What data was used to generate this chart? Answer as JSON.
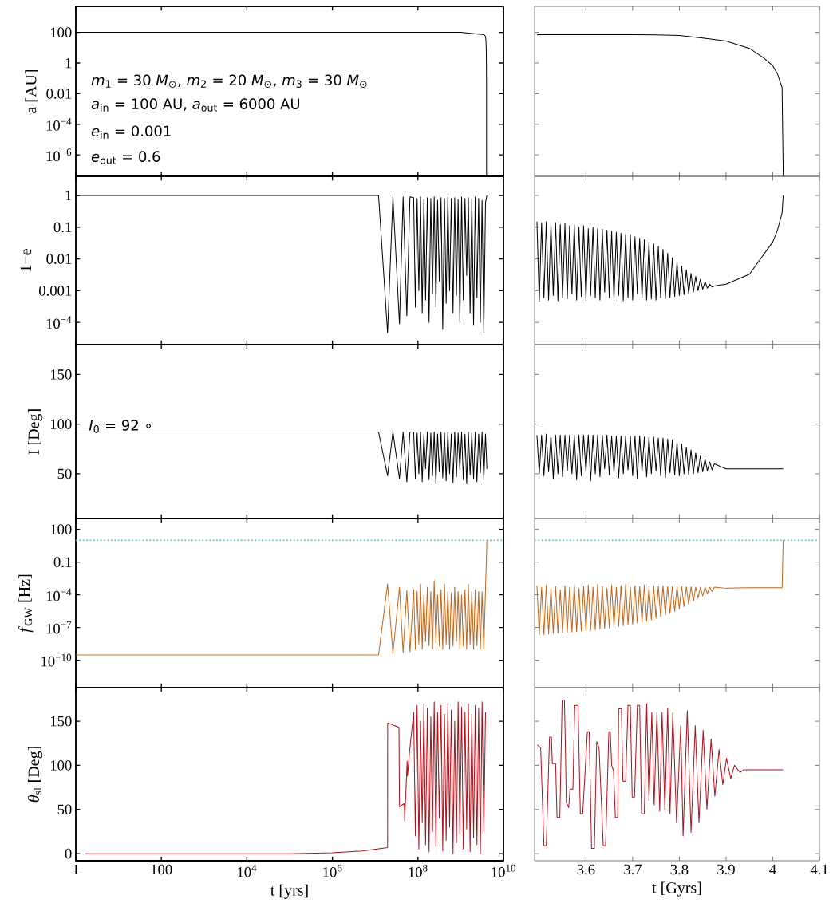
{
  "chart_data": [
    {
      "type": "line",
      "ylabel": "a [AU]",
      "log": "xy",
      "tick_labels": "y",
      "xlim": [
        1,
        10000000000
      ],
      "ylim": [
        4e-08,
        5000
      ],
      "xticks": [
        1,
        100,
        10000,
        1000000,
        100000000,
        10000000000
      ],
      "yticks": [
        100,
        1,
        0.01,
        {
          "value": 0.0001,
          "label": "10$^{−4}$"
        },
        {
          "value": 1e-06,
          "label": "10$^{−6}$"
        }
      ],
      "annotations": [
        "*m*$_{1}$ = 30 *M*$_{⊙}$, *m*$_{2}$ = 20 *M*$_{⊙}$, *m*$_{3}$ = 30 *M*$_{⊙}$",
        "*a*$_{in}$ = 100 AU, *a*$_{out}$ = 6000 AU",
        "*e*$_{in}$ = 0.001",
        "*e*$_{out}$ = 0.6"
      ],
      "series": [
        {
          "color": "#000000",
          "x": [
            1,
            1000000000.0,
            3500000000.0,
            3800000000.0,
            3900000000.0,
            3950000000.0,
            4000000000.0,
            4020000000.0,
            4022500000.0
          ],
          "values": [
            100,
            100,
            70,
            55,
            27,
            9,
            0.66,
            0.025,
            4e-08
          ]
        }
      ]
    },
    {
      "type": "line",
      "log": "y",
      "tick_labels": false,
      "xlim": [
        3.49,
        4.1
      ],
      "ylim": [
        4e-08,
        5000
      ],
      "xticks": [
        3.6,
        3.7,
        3.8,
        3.9,
        4,
        4.1
      ],
      "yticks": [
        100,
        1,
        0.01,
        0.0001,
        1e-06
      ],
      "series": [
        {
          "color": "#000000",
          "x": [
            3.495,
            3.7,
            3.75,
            3.8,
            3.85,
            3.9,
            3.95,
            3.98,
            4.0,
            4.01,
            4.02,
            4.0225
          ],
          "values": [
            70,
            70,
            68,
            62,
            43,
            27,
            9,
            2.2,
            0.66,
            0.2,
            0.025,
            4e-08
          ]
        }
      ]
    },
    {
      "type": "line",
      "ylabel": "1−e",
      "log": "xy",
      "tick_labels": "y",
      "xlim": [
        1,
        10000000000
      ],
      "ylim": [
        2e-05,
        4
      ],
      "xticks": [
        1,
        100,
        10000,
        1000000,
        100000000,
        10000000000
      ],
      "yticks": [
        1,
        0.1,
        0.01,
        0.001,
        {
          "value": 0.0001,
          "label": "10$^{−4}$"
        }
      ],
      "x": [
        1,
        1000000.0,
        12000000.0,
        19500000.0,
        26000000.0,
        37000000.0,
        45000000.0,
        55000000.0,
        65000000.0,
        79400000.0,
        87100000.0,
        95500000.0,
        105000000.0,
        115000000.0,
        126000000.0,
        138000000.0,
        151000000.0,
        166000000.0,
        182000000.0,
        200000000.0,
        219000000.0,
        240000000.0,
        263000000.0,
        288000000.0,
        316000000.0,
        347000000.0,
        380000000.0,
        417000000.0,
        457000000.0,
        501000000.0,
        550000000.0,
        603000000.0,
        661000000.0,
        724000000.0,
        794000000.0,
        871000000.0,
        955000000.0,
        1050000000.0,
        1150000000.0,
        1260000000.0,
        1380000000.0,
        1510000000.0,
        1660000000.0,
        1820000000.0,
        2000000000.0,
        2190000000.0,
        2400000000.0,
        2630000000.0,
        2880000000.0,
        3160000000.0,
        3470000000.0,
        3800000000.0,
        4100000000.0
      ],
      "series": [
        {
          "color": "#000000",
          "values": [
            1,
            1,
            1,
            4.7e-05,
            0.9,
            9e-05,
            0.9,
            0.00016,
            0.9,
            0.85,
            0.0003,
            0.8,
            0.001,
            0.9,
            0.0002,
            0.75,
            0.0005,
            0.85,
            0.0001,
            0.8,
            0.0008,
            0.9,
            0.0003,
            0.7,
            0.002,
            0.85,
            6e-05,
            0.8,
            0.0004,
            0.9,
            0.001,
            0.8,
            0.0002,
            0.85,
            0.0007,
            0.75,
            0.0001,
            0.9,
            0.0005,
            0.8,
            0.003,
            0.85,
            0.0002,
            0.8,
            8e-05,
            0.9,
            0.0006,
            0.8,
            0.0001,
            0.7,
            5e-05,
            0.6,
            1
          ]
        }
      ]
    },
    {
      "type": "line",
      "log": "y",
      "tick_labels": false,
      "xlim": [
        3.49,
        4.1
      ],
      "ylim": [
        2e-05,
        4
      ],
      "xticks": [
        3.6,
        3.7,
        3.8,
        3.9,
        4,
        4.1
      ],
      "yticks": [
        1,
        0.1,
        0.01,
        0.001,
        0.0001
      ],
      "x": [
        3.495,
        3.5,
        3.505,
        3.51,
        3.515,
        3.52,
        3.525,
        3.53,
        3.535,
        3.54,
        3.545,
        3.55,
        3.555,
        3.56,
        3.565,
        3.57,
        3.575,
        3.58,
        3.585,
        3.59,
        3.595,
        3.6,
        3.605,
        3.61,
        3.615,
        3.62,
        3.625,
        3.63,
        3.635,
        3.64,
        3.645,
        3.65,
        3.655,
        3.66,
        3.665,
        3.67,
        3.675,
        3.68,
        3.685,
        3.69,
        3.695,
        3.7,
        3.705,
        3.71,
        3.715,
        3.72,
        3.725,
        3.73,
        3.735,
        3.74,
        3.745,
        3.75,
        3.755,
        3.76,
        3.765,
        3.77,
        3.775,
        3.78,
        3.785,
        3.79,
        3.795,
        3.8,
        3.805,
        3.81,
        3.815,
        3.82,
        3.825,
        3.83,
        3.835,
        3.84,
        3.845,
        3.85,
        3.855,
        3.86,
        3.865,
        3.87,
        3.875,
        3.9,
        3.95,
        4.0,
        4.01,
        4.02,
        4.0225
      ],
      "series": [
        {
          "color": "#000000",
          "values": [
            0.15,
            0.00045,
            0.14,
            0.0006,
            0.15,
            0.0005,
            0.13,
            0.0007,
            0.14,
            0.00048,
            0.12,
            0.0006,
            0.13,
            0.00055,
            0.11,
            0.0008,
            0.12,
            0.0005,
            0.1,
            0.00065,
            0.11,
            0.0005,
            0.09,
            0.0007,
            0.1,
            0.0006,
            0.09,
            0.0005,
            0.085,
            0.0009,
            0.08,
            0.0006,
            0.075,
            0.0005,
            0.07,
            0.0007,
            0.065,
            0.00048,
            0.06,
            0.0006,
            0.06,
            0.0005,
            0.05,
            0.0008,
            0.045,
            0.0006,
            0.04,
            0.0005,
            0.035,
            0.00055,
            0.03,
            0.0005,
            0.025,
            0.0006,
            0.02,
            0.00055,
            0.015,
            0.0006,
            0.011,
            0.00065,
            0.008,
            0.0007,
            0.006,
            0.00075,
            0.0045,
            0.0008,
            0.0035,
            0.0009,
            0.0028,
            0.001,
            0.0023,
            0.0011,
            0.0019,
            0.0012,
            0.0016,
            0.0013,
            0.0014,
            0.0016,
            0.0033,
            0.034,
            0.08,
            0.28,
            1
          ]
        }
      ]
    },
    {
      "type": "line",
      "ylabel": "I [Deg]",
      "log": "x",
      "tick_labels": "y",
      "xlim": [
        1,
        10000000000
      ],
      "ylim": [
        5,
        180
      ],
      "xticks": [
        1,
        100,
        10000,
        1000000,
        100000000,
        10000000000
      ],
      "yticks": [
        50,
        100,
        150
      ],
      "annotations": [
        "*I*$_{0}$ = 92 ∘"
      ],
      "x": [
        1,
        1000000.0,
        12000000.0,
        19500000.0,
        26000000.0,
        37000000.0,
        45000000.0,
        55000000.0,
        65000000.0,
        79400000.0,
        87100000.0,
        95500000.0,
        105000000.0,
        115000000.0,
        126000000.0,
        138000000.0,
        151000000.0,
        166000000.0,
        182000000.0,
        200000000.0,
        219000000.0,
        240000000.0,
        263000000.0,
        288000000.0,
        316000000.0,
        347000000.0,
        380000000.0,
        417000000.0,
        457000000.0,
        501000000.0,
        550000000.0,
        603000000.0,
        661000000.0,
        724000000.0,
        794000000.0,
        871000000.0,
        955000000.0,
        1050000000.0,
        1150000000.0,
        1260000000.0,
        1380000000.0,
        1510000000.0,
        1660000000.0,
        1820000000.0,
        2000000000.0,
        2190000000.0,
        2400000000.0,
        2630000000.0,
        2880000000.0,
        3160000000.0,
        3470000000.0,
        3800000000.0,
        4100000000.0
      ],
      "series": [
        {
          "color": "#000000",
          "values": [
            92,
            92,
            92,
            48,
            92,
            45,
            92,
            42,
            92,
            92,
            45,
            91,
            50,
            92,
            42,
            90,
            55,
            92,
            44,
            91,
            48,
            92,
            40,
            90,
            52,
            92,
            46,
            91,
            43,
            92,
            50,
            90,
            41,
            92,
            47,
            91,
            54,
            92,
            44,
            90,
            40,
            92,
            49,
            91,
            45,
            92,
            42,
            90,
            51,
            92,
            44,
            90,
            55
          ]
        }
      ]
    },
    {
      "type": "line",
      "tick_labels": false,
      "xlim": [
        3.49,
        4.1
      ],
      "ylim": [
        5,
        180
      ],
      "xticks": [
        3.6,
        3.7,
        3.8,
        3.9,
        4,
        4.1
      ],
      "yticks": [
        50,
        100,
        150
      ],
      "x": [
        3.495,
        3.5,
        3.505,
        3.51,
        3.515,
        3.52,
        3.525,
        3.53,
        3.535,
        3.54,
        3.545,
        3.55,
        3.555,
        3.56,
        3.565,
        3.57,
        3.575,
        3.58,
        3.585,
        3.59,
        3.595,
        3.6,
        3.605,
        3.61,
        3.615,
        3.62,
        3.625,
        3.63,
        3.635,
        3.64,
        3.645,
        3.65,
        3.655,
        3.66,
        3.665,
        3.67,
        3.675,
        3.68,
        3.685,
        3.69,
        3.695,
        3.7,
        3.705,
        3.71,
        3.715,
        3.72,
        3.725,
        3.73,
        3.735,
        3.74,
        3.745,
        3.75,
        3.755,
        3.76,
        3.765,
        3.77,
        3.775,
        3.78,
        3.785,
        3.79,
        3.795,
        3.8,
        3.805,
        3.81,
        3.815,
        3.82,
        3.825,
        3.83,
        3.835,
        3.84,
        3.845,
        3.85,
        3.855,
        3.86,
        3.865,
        3.87,
        3.875,
        3.9,
        3.95,
        4.0,
        4.01,
        4.02,
        4.0225
      ],
      "series": [
        {
          "color": "#000000",
          "values": [
            89,
            50,
            89,
            48,
            90,
            52,
            89,
            45,
            89,
            50,
            89,
            47,
            89,
            53,
            89,
            50,
            89,
            44,
            89,
            48,
            89,
            52,
            89,
            43,
            89,
            50,
            89,
            47,
            89,
            55,
            89,
            49,
            88,
            51,
            88,
            46,
            88,
            50,
            88,
            54,
            88,
            48,
            88,
            45,
            88,
            52,
            87,
            47,
            87,
            50,
            87,
            53,
            86,
            48,
            86,
            46,
            85,
            51,
            84,
            49,
            82,
            48,
            80,
            50,
            77,
            49,
            74,
            50,
            71,
            51,
            68,
            52,
            65,
            53,
            62,
            54,
            60,
            55,
            55,
            55,
            55,
            55,
            55
          ]
        }
      ]
    },
    {
      "type": "line",
      "ylabel": "*f*$_{GW}$ [Hz]",
      "log": "xy",
      "tick_labels": "y",
      "xlim": [
        1,
        10000000000
      ],
      "ylim": [
        3e-13,
        1000
      ],
      "xticks": [
        1,
        100,
        10000,
        1000000,
        100000000,
        10000000000
      ],
      "yticks": [
        100,
        0.1,
        {
          "value": 0.0001,
          "label": "10$^{−4}$"
        },
        {
          "value": 1e-07,
          "label": "10$^{−7}$"
        },
        {
          "value": 1e-10,
          "label": "10$^{−10}$"
        }
      ],
      "ref_lines": [
        {
          "axis": "y",
          "value": 10,
          "color": "#3fcfcf",
          "line_style": "dotted"
        }
      ],
      "x": [
        1,
        1000000.0,
        12000000.0,
        19500000.0,
        26000000.0,
        37000000.0,
        45000000.0,
        55000000.0,
        65000000.0,
        79400000.0,
        87100000.0,
        95500000.0,
        105000000.0,
        115000000.0,
        126000000.0,
        138000000.0,
        151000000.0,
        166000000.0,
        182000000.0,
        200000000.0,
        219000000.0,
        240000000.0,
        263000000.0,
        288000000.0,
        316000000.0,
        347000000.0,
        380000000.0,
        417000000.0,
        457000000.0,
        501000000.0,
        550000000.0,
        603000000.0,
        661000000.0,
        724000000.0,
        794000000.0,
        871000000.0,
        955000000.0,
        1050000000.0,
        1150000000.0,
        1260000000.0,
        1380000000.0,
        1510000000.0,
        1660000000.0,
        1820000000.0,
        2000000000.0,
        2190000000.0,
        2400000000.0,
        2630000000.0,
        2880000000.0,
        3160000000.0,
        3470000000.0,
        3800000000.0,
        4100000000.0
      ],
      "series": [
        {
          "color": "#c0661a",
          "values": [
            3e-10,
            3e-10,
            3e-10,
            0.001,
            4e-10,
            0.0005,
            5e-10,
            0.00025,
            6e-10,
            0.0003,
            1e-09,
            0.0002,
            3e-09,
            0.001,
            1e-09,
            0.0001,
            5e-09,
            0.0005,
            2e-09,
            0.0002,
            1e-09,
            0.002,
            4e-09,
            0.0001,
            2e-09,
            0.0003,
            1e-09,
            0.001,
            3e-09,
            0.0002,
            1e-09,
            0.00015,
            2e-09,
            0.0005,
            5e-09,
            0.0002,
            1e-09,
            0.0001,
            2e-09,
            0.0003,
            1e-09,
            0.001,
            3e-09,
            0.0002,
            1e-09,
            0.0003,
            2e-09,
            0.0002,
            1e-09,
            0.0002,
            1e-09,
            0.0003,
            10
          ]
        }
      ]
    },
    {
      "type": "line",
      "log": "y",
      "tick_labels": false,
      "xlim": [
        3.49,
        4.1
      ],
      "ylim": [
        3e-13,
        1000
      ],
      "xticks": [
        3.6,
        3.7,
        3.8,
        3.9,
        4,
        4.1
      ],
      "yticks": [
        100,
        0.1,
        0.0001,
        1e-07,
        1e-10
      ],
      "ref_lines": [
        {
          "axis": "y",
          "value": 10,
          "color": "#3fcfcf",
          "line_style": "dotted"
        }
      ],
      "x": [
        3.495,
        3.5,
        3.505,
        3.51,
        3.515,
        3.52,
        3.525,
        3.53,
        3.535,
        3.54,
        3.545,
        3.55,
        3.555,
        3.56,
        3.565,
        3.57,
        3.575,
        3.58,
        3.585,
        3.59,
        3.595,
        3.6,
        3.605,
        3.61,
        3.615,
        3.62,
        3.625,
        3.63,
        3.635,
        3.64,
        3.645,
        3.65,
        3.655,
        3.66,
        3.665,
        3.67,
        3.675,
        3.68,
        3.685,
        3.69,
        3.695,
        3.7,
        3.705,
        3.71,
        3.715,
        3.72,
        3.725,
        3.73,
        3.735,
        3.74,
        3.745,
        3.75,
        3.755,
        3.76,
        3.765,
        3.77,
        3.775,
        3.78,
        3.785,
        3.79,
        3.795,
        3.8,
        3.805,
        3.81,
        3.815,
        3.82,
        3.825,
        3.83,
        3.835,
        3.84,
        3.845,
        3.85,
        3.855,
        3.86,
        3.865,
        3.87,
        3.875,
        3.9,
        3.95,
        4.0,
        4.01,
        4.02,
        4.0225
      ],
      "series": [
        {
          "color": "#c0661a",
          "values": [
            0.0007,
            2e-08,
            0.0005,
            2.2e-08,
            0.0008,
            2.5e-08,
            0.0004,
            2.7e-08,
            0.0006,
            3e-08,
            0.0003,
            3.2e-08,
            0.0007,
            3.5e-08,
            0.0005,
            3.8e-08,
            0.0009,
            4e-08,
            0.0004,
            4.5e-08,
            0.0006,
            5e-08,
            0.0008,
            5.5e-08,
            0.0005,
            6e-08,
            0.001,
            7e-08,
            0.0006,
            8e-08,
            0.0004,
            9e-08,
            0.0008,
            1e-07,
            0.0005,
            1.2e-07,
            0.0007,
            1.4e-07,
            0.0009,
            1.7e-07,
            0.0005,
            2e-07,
            0.0007,
            2.5e-07,
            0.0006,
            3e-07,
            0.0008,
            4e-07,
            0.0006,
            5e-07,
            0.0007,
            7e-07,
            0.0006,
            1e-06,
            0.0007,
            1.4e-06,
            0.0006,
            2e-06,
            0.0006,
            3e-06,
            0.0006,
            5e-06,
            0.0006,
            8e-06,
            0.00055,
            1.3e-05,
            0.00055,
            2.5e-05,
            0.0005,
            5e-05,
            0.0005,
            8e-05,
            0.0005,
            0.00013,
            0.0005,
            0.0002,
            0.0005,
            0.0004,
            0.00045,
            0.00045,
            0.00045,
            0.00045,
            10
          ]
        }
      ]
    },
    {
      "type": "line",
      "xlabel": "t [yrs]",
      "ylabel": "*θ*$_{sl}$ [Deg]",
      "log": "x",
      "xlim": [
        1,
        10000000000
      ],
      "ylim": [
        -8,
        188
      ],
      "xticks": [
        1,
        100,
        {
          "value": 10000.0,
          "label": "10$^{4}$"
        },
        {
          "value": 1000000.0,
          "label": "10$^{6}$"
        },
        {
          "value": 100000000.0,
          "label": "10$^{8}$"
        },
        {
          "value": 10000000000.0,
          "label": "10$^{10}$"
        }
      ],
      "yticks": [
        0,
        50,
        100,
        150
      ],
      "x": [
        1.7,
        100000.0,
        1000000.0,
        5000000.0,
        19500000.0,
        19600000.0,
        36000000.0,
        37000000.0,
        48000000.0,
        49000000.0,
        56000000.0,
        57000000.0,
        65000000.0,
        79400000.0,
        87100000.0,
        95500000.0,
        105000000.0,
        115000000.0,
        126000000.0,
        138000000.0,
        151000000.0,
        166000000.0,
        182000000.0,
        200000000.0,
        219000000.0,
        240000000.0,
        263000000.0,
        288000000.0,
        316000000.0,
        347000000.0,
        380000000.0,
        417000000.0,
        457000000.0,
        501000000.0,
        550000000.0,
        603000000.0,
        661000000.0,
        724000000.0,
        794000000.0,
        871000000.0,
        955000000.0,
        1050000000.0,
        1150000000.0,
        1260000000.0,
        1380000000.0,
        1510000000.0,
        1660000000.0,
        1820000000.0,
        2000000000.0,
        2190000000.0,
        2400000000.0,
        2630000000.0,
        2880000000.0,
        3160000000.0,
        3470000000.0,
        3800000000.0
      ],
      "series": [
        {
          "color": "#b0101a",
          "values": [
            0,
            0,
            1,
            3,
            7,
            148,
            143,
            53,
            57,
            37,
            105,
            88,
            120,
            160,
            20,
            168,
            5,
            150,
            35,
            170,
            10,
            165,
            2,
            155,
            25,
            172,
            8,
            160,
            40,
            168,
            3,
            158,
            15,
            170,
            30,
            163,
            0,
            150,
            12,
            172,
            22,
            166,
            5,
            160,
            28,
            170,
            2,
            158,
            18,
            168,
            10,
            165,
            0,
            172,
            25,
            160
          ]
        }
      ]
    },
    {
      "type": "line",
      "xlabel": "t [Gyrs]",
      "tick_labels": "x",
      "xlim": [
        3.49,
        4.1
      ],
      "ylim": [
        -8,
        188
      ],
      "xticks": [
        3.6,
        3.7,
        3.8,
        3.9,
        4,
        4.1
      ],
      "yticks": [
        0,
        50,
        100,
        150
      ],
      "series": [
        {
          "color": "#b0101a",
          "x": [
            3.496,
            3.503,
            3.51,
            3.515,
            3.522,
            3.526,
            3.528,
            3.535,
            3.538,
            3.544,
            3.549,
            3.554,
            3.558,
            3.563,
            3.566,
            3.572,
            3.576,
            3.583,
            3.588,
            3.593,
            3.603,
            3.607,
            3.612,
            3.618,
            3.623,
            3.628,
            3.637,
            3.642,
            3.649,
            3.652,
            3.655,
            3.659,
            3.663,
            3.668,
            3.67,
            3.676,
            3.679,
            3.685,
            3.69,
            3.695,
            3.699,
            3.704,
            3.71,
            3.715,
            3.719,
            3.725,
            3.73,
            3.735,
            3.741,
            3.746,
            3.752,
            3.758,
            3.763,
            3.769,
            3.775,
            3.78,
            3.786,
            3.794,
            3.803,
            3.808,
            3.817,
            3.825,
            3.834,
            3.842,
            3.851,
            3.859,
            3.868,
            3.876,
            3.885,
            3.893,
            3.901,
            3.91,
            3.918,
            3.93,
            3.938,
            4.022
          ],
          "values": [
            123,
            120,
            9,
            9,
            132,
            132,
            102,
            102,
            41,
            41,
            174,
            174,
            58,
            52,
            73,
            73,
            168,
            168,
            45,
            45,
            138,
            138,
            6,
            6,
            127,
            120,
            9,
            9,
            138,
            138,
            100,
            94,
            41,
            41,
            164,
            164,
            82,
            82,
            168,
            168,
            64,
            64,
            168,
            168,
            45,
            45,
            170,
            60,
            160,
            55,
            160,
            48,
            160,
            50,
            165,
            45,
            160,
            35,
            145,
            20,
            162,
            24,
            145,
            35,
            140,
            50,
            130,
            65,
            118,
            78,
            108,
            85,
            100,
            92,
            95,
            95
          ]
        }
      ]
    }
  ]
}
